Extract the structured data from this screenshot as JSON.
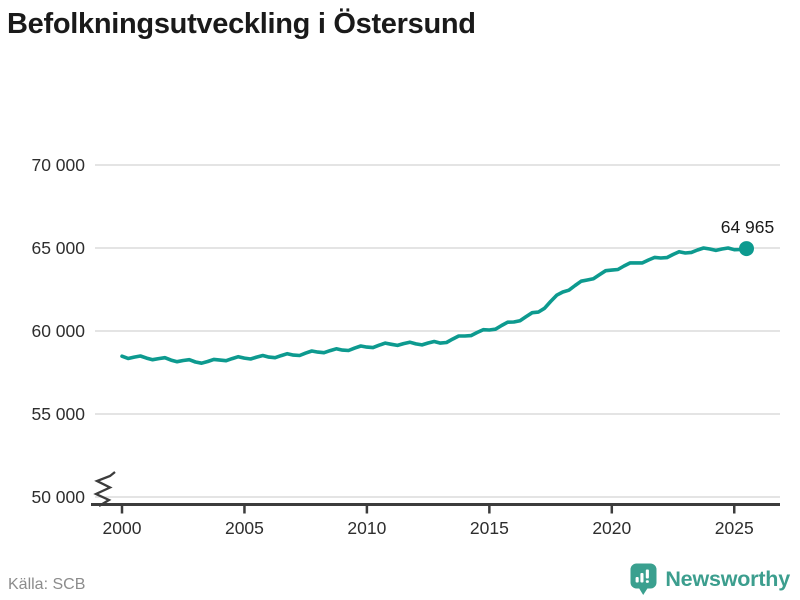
{
  "title": "Befolkningsutveckling i Östersund",
  "chart_data": {
    "type": "line",
    "title": "Befolkningsutveckling i Östersund",
    "xlabel": "",
    "ylabel": "",
    "legend": "none",
    "grid": "horizontal",
    "x_axis": {
      "tick_years": [
        2000,
        2005,
        2010,
        2015,
        2020,
        2025
      ],
      "range": [
        1998.9,
        2026.9
      ]
    },
    "y_axis": {
      "ticks": [
        {
          "value": 70000,
          "label": "70 000"
        },
        {
          "value": 65000,
          "label": "65 000"
        },
        {
          "value": 60000,
          "label": "60 000"
        },
        {
          "value": 55000,
          "label": "55 000"
        },
        {
          "value": 50000,
          "label": "50 000"
        }
      ],
      "displayed_range": [
        50000,
        70000
      ],
      "axis_break_at_bottom": true
    },
    "end_label": "64 965",
    "end_value": 64965,
    "series": [
      {
        "name": "Befolkning Östersund",
        "color": "#0d9a8f",
        "points": [
          [
            2000.0,
            58480
          ],
          [
            2000.25,
            58345
          ],
          [
            2000.5,
            58430
          ],
          [
            2000.75,
            58495
          ],
          [
            2001.0,
            58370
          ],
          [
            2001.25,
            58270
          ],
          [
            2001.5,
            58340
          ],
          [
            2001.75,
            58390
          ],
          [
            2002.0,
            58250
          ],
          [
            2002.25,
            58150
          ],
          [
            2002.5,
            58220
          ],
          [
            2002.75,
            58270
          ],
          [
            2003.0,
            58130
          ],
          [
            2003.25,
            58060
          ],
          [
            2003.5,
            58160
          ],
          [
            2003.75,
            58290
          ],
          [
            2004.0,
            58250
          ],
          [
            2004.25,
            58210
          ],
          [
            2004.5,
            58340
          ],
          [
            2004.75,
            58450
          ],
          [
            2005.0,
            58370
          ],
          [
            2005.25,
            58315
          ],
          [
            2005.5,
            58430
          ],
          [
            2005.75,
            58525
          ],
          [
            2006.0,
            58430
          ],
          [
            2006.25,
            58390
          ],
          [
            2006.5,
            58520
          ],
          [
            2006.75,
            58630
          ],
          [
            2007.0,
            58550
          ],
          [
            2007.25,
            58525
          ],
          [
            2007.5,
            58670
          ],
          [
            2007.75,
            58795
          ],
          [
            2008.0,
            58730
          ],
          [
            2008.25,
            58690
          ],
          [
            2008.5,
            58820
          ],
          [
            2008.75,
            58930
          ],
          [
            2009.0,
            58850
          ],
          [
            2009.25,
            58825
          ],
          [
            2009.5,
            58970
          ],
          [
            2009.75,
            59095
          ],
          [
            2010.0,
            59030
          ],
          [
            2010.25,
            59000
          ],
          [
            2010.5,
            59145
          ],
          [
            2010.75,
            59270
          ],
          [
            2011.0,
            59200
          ],
          [
            2011.25,
            59135
          ],
          [
            2011.5,
            59240
          ],
          [
            2011.75,
            59325
          ],
          [
            2012.0,
            59220
          ],
          [
            2012.25,
            59160
          ],
          [
            2012.5,
            59275
          ],
          [
            2012.75,
            59370
          ],
          [
            2013.0,
            59270
          ],
          [
            2013.25,
            59310
          ],
          [
            2013.5,
            59515
          ],
          [
            2013.75,
            59700
          ],
          [
            2014.0,
            59700
          ],
          [
            2014.25,
            59720
          ],
          [
            2014.5,
            59910
          ],
          [
            2014.75,
            60080
          ],
          [
            2015.0,
            60060
          ],
          [
            2015.25,
            60110
          ],
          [
            2015.5,
            60330
          ],
          [
            2015.75,
            60530
          ],
          [
            2016.0,
            60540
          ],
          [
            2016.25,
            60620
          ],
          [
            2016.5,
            60870
          ],
          [
            2016.75,
            61100
          ],
          [
            2017.0,
            61140
          ],
          [
            2017.25,
            61370
          ],
          [
            2017.5,
            61775
          ],
          [
            2017.75,
            62155
          ],
          [
            2018.0,
            62350
          ],
          [
            2018.25,
            62460
          ],
          [
            2018.5,
            62740
          ],
          [
            2018.75,
            63000
          ],
          [
            2019.0,
            63070
          ],
          [
            2019.25,
            63150
          ],
          [
            2019.5,
            63400
          ],
          [
            2019.75,
            63630
          ],
          [
            2020.0,
            63670
          ],
          [
            2020.25,
            63705
          ],
          [
            2020.5,
            63915
          ],
          [
            2020.75,
            64100
          ],
          [
            2021.0,
            64100
          ],
          [
            2021.25,
            64105
          ],
          [
            2021.5,
            64280
          ],
          [
            2021.75,
            64435
          ],
          [
            2022.0,
            64400
          ],
          [
            2022.25,
            64420
          ],
          [
            2022.5,
            64610
          ],
          [
            2022.75,
            64780
          ],
          [
            2023.0,
            64700
          ],
          [
            2023.25,
            64735
          ],
          [
            2023.5,
            64880
          ],
          [
            2023.75,
            65000
          ],
          [
            2024.0,
            64940
          ],
          [
            2024.25,
            64855
          ],
          [
            2024.5,
            64940
          ],
          [
            2024.75,
            65000
          ],
          [
            2025.0,
            64900
          ],
          [
            2025.25,
            64910
          ],
          [
            2025.5,
            64965
          ]
        ]
      }
    ]
  },
  "footer": {
    "source": "Källa: SCB",
    "brand": "Newsworthy"
  },
  "colors": {
    "line": "#0d9a8f",
    "grid": "#dcdcdc",
    "axis": "#3c3c3c",
    "title": "#1a1a1a",
    "tick_label": "#2e2e2e",
    "source_text": "#8c8c8c",
    "brand": "#3c9e8e"
  }
}
